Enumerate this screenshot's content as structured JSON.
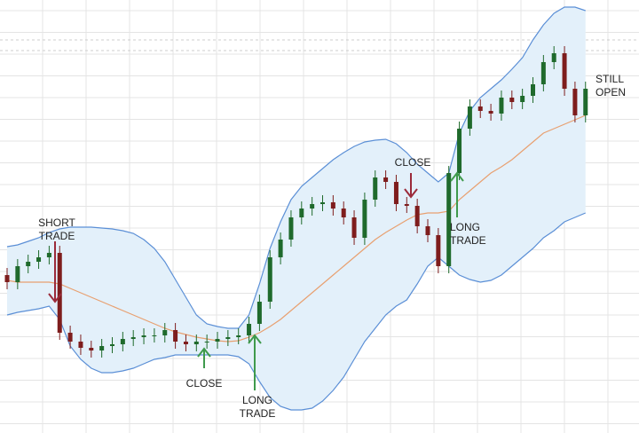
{
  "chart_data": {
    "type": "candlestick",
    "ylim": [
      0,
      488
    ],
    "open": [
      178,
      170,
      188,
      193,
      198,
      203,
      113,
      103,
      96,
      93,
      98,
      100,
      106,
      108,
      110,
      110,
      116,
      103,
      100,
      103,
      103,
      106,
      108,
      110,
      123,
      148,
      198,
      218,
      243,
      253,
      258,
      260,
      253,
      243,
      220,
      263,
      288,
      283,
      258,
      256,
      233,
      223,
      188,
      293,
      343,
      368,
      363,
      360,
      378,
      373,
      380,
      393,
      418,
      428,
      388,
      358
    ],
    "high": [
      186,
      196,
      201,
      206,
      211,
      211,
      121,
      111,
      104,
      106,
      108,
      114,
      116,
      118,
      118,
      124,
      124,
      111,
      111,
      111,
      114,
      116,
      118,
      131,
      156,
      206,
      226,
      251,
      261,
      266,
      268,
      268,
      261,
      251,
      271,
      296,
      296,
      291,
      266,
      264,
      241,
      231,
      301,
      351,
      376,
      376,
      371,
      386,
      386,
      388,
      401,
      426,
      436,
      436,
      396,
      396
    ],
    "low": [
      162,
      162,
      180,
      185,
      190,
      105,
      95,
      88,
      85,
      85,
      90,
      92,
      98,
      100,
      102,
      102,
      95,
      92,
      92,
      95,
      95,
      98,
      100,
      102,
      115,
      140,
      190,
      210,
      235,
      245,
      250,
      245,
      235,
      212,
      212,
      255,
      275,
      250,
      248,
      225,
      215,
      180,
      180,
      285,
      335,
      355,
      352,
      352,
      365,
      365,
      372,
      385,
      410,
      380,
      350,
      350
    ],
    "close": [
      170,
      188,
      193,
      198,
      203,
      113,
      103,
      96,
      93,
      98,
      100,
      106,
      108,
      110,
      110,
      116,
      103,
      100,
      103,
      103,
      106,
      108,
      110,
      123,
      148,
      198,
      218,
      243,
      253,
      258,
      260,
      253,
      243,
      220,
      263,
      288,
      283,
      258,
      256,
      233,
      223,
      188,
      293,
      343,
      368,
      363,
      360,
      378,
      373,
      380,
      393,
      418,
      428,
      388,
      358,
      388
    ],
    "up_color": "#1f6a2c",
    "down_color": "#7e1d1d",
    "series": [
      {
        "color": "#5b8fd6",
        "values": [
          210,
          212,
          216,
          220,
          226,
          230,
          232,
          232,
          232,
          231,
          230,
          228,
          225,
          218,
          208,
          193,
          173,
          153,
          133,
          123,
          120,
          118,
          118,
          133,
          168,
          208,
          238,
          263,
          278,
          288,
          298,
          308,
          316,
          323,
          328,
          330,
          331,
          326,
          316,
          303,
          293,
          283,
          293,
          338,
          363,
          378,
          388,
          398,
          410,
          423,
          443,
          460,
          473,
          480,
          480,
          476
        ]
      },
      {
        "color": "#e8a070",
        "values": [
          172,
          170,
          170,
          170,
          170,
          168,
          163,
          158,
          153,
          148,
          143,
          138,
          133,
          128,
          123,
          118,
          114,
          111,
          108,
          106,
          104,
          103,
          104,
          108,
          113,
          120,
          128,
          138,
          148,
          158,
          168,
          178,
          188,
          198,
          208,
          218,
          226,
          233,
          240,
          246,
          248,
          248,
          250,
          263,
          273,
          283,
          293,
          300,
          308,
          318,
          328,
          338,
          343,
          348,
          353,
          358
        ]
      },
      {
        "color": "#5b8fd6",
        "values": [
          133,
          136,
          138,
          140,
          143,
          128,
          98,
          83,
          73,
          68,
          68,
          70,
          73,
          78,
          83,
          85,
          88,
          88,
          88,
          88,
          88,
          88,
          86,
          78,
          58,
          40,
          30,
          26,
          26,
          28,
          36,
          48,
          63,
          83,
          103,
          118,
          133,
          143,
          150,
          168,
          188,
          198,
          188,
          178,
          173,
          170,
          172,
          178,
          188,
          198,
          208,
          220,
          228,
          238,
          243,
          248
        ]
      }
    ],
    "band_fill": "#e3f0fa",
    "annotations": [
      {
        "lines": [
          "SHORT",
          "TRADE"
        ],
        "color": "#9b2a3a"
      },
      {
        "lines": [
          "CLOSE"
        ],
        "color": "#3f9a4c"
      },
      {
        "lines": [
          "LONG",
          "TRADE"
        ],
        "color": "#3f9a4c"
      },
      {
        "lines": [
          "CLOSE"
        ],
        "color": "#9b2a3a"
      },
      {
        "lines": [
          "LONG",
          "TRADE"
        ],
        "color": "#3f9a4c"
      },
      {
        "lines": [
          "STILL",
          "OPEN"
        ]
      }
    ]
  }
}
